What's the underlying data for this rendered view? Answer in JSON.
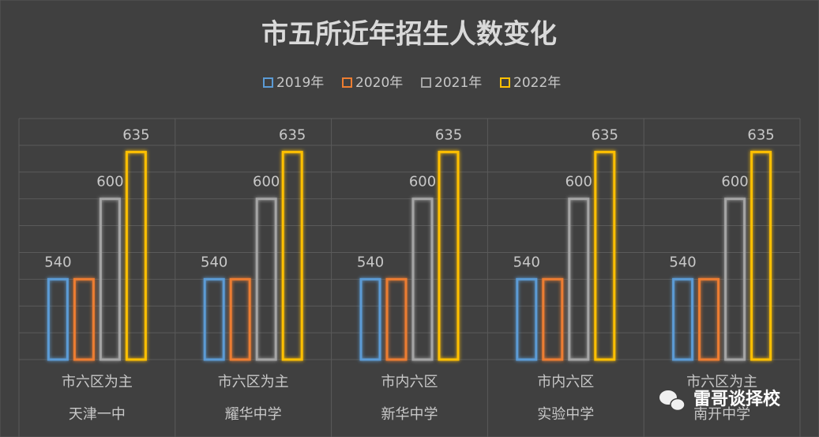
{
  "chart_data": {
    "type": "bar",
    "title": "市五所近年招生人数变化",
    "category_groups": [
      "市六区为主",
      "市六区为主",
      "市内六区",
      "市内六区",
      "市六区为主"
    ],
    "categories": [
      "天津一中",
      "耀华中学",
      "新华中学",
      "实验中学",
      "南开中学"
    ],
    "series": [
      {
        "name": "2019年",
        "color": "#5b9bd5",
        "values": [
          540,
          540,
          540,
          540,
          540
        ],
        "data_labels": true
      },
      {
        "name": "2020年",
        "color": "#ed7d31",
        "values": [
          540,
          540,
          540,
          540,
          540
        ],
        "data_labels": false
      },
      {
        "name": "2021年",
        "color": "#a5a5a5",
        "values": [
          600,
          600,
          600,
          600,
          600
        ],
        "data_labels": true
      },
      {
        "name": "2022年",
        "color": "#ffc000",
        "values": [
          635,
          635,
          635,
          635,
          635
        ],
        "data_labels": true
      }
    ],
    "ylim": [
      480,
      660
    ],
    "yticks": [
      480,
      500,
      520,
      540,
      560,
      580,
      600,
      620,
      640,
      660
    ],
    "ytick_labels": false,
    "grid": true,
    "legend": "top",
    "watermark": "雷哥谈择校"
  }
}
